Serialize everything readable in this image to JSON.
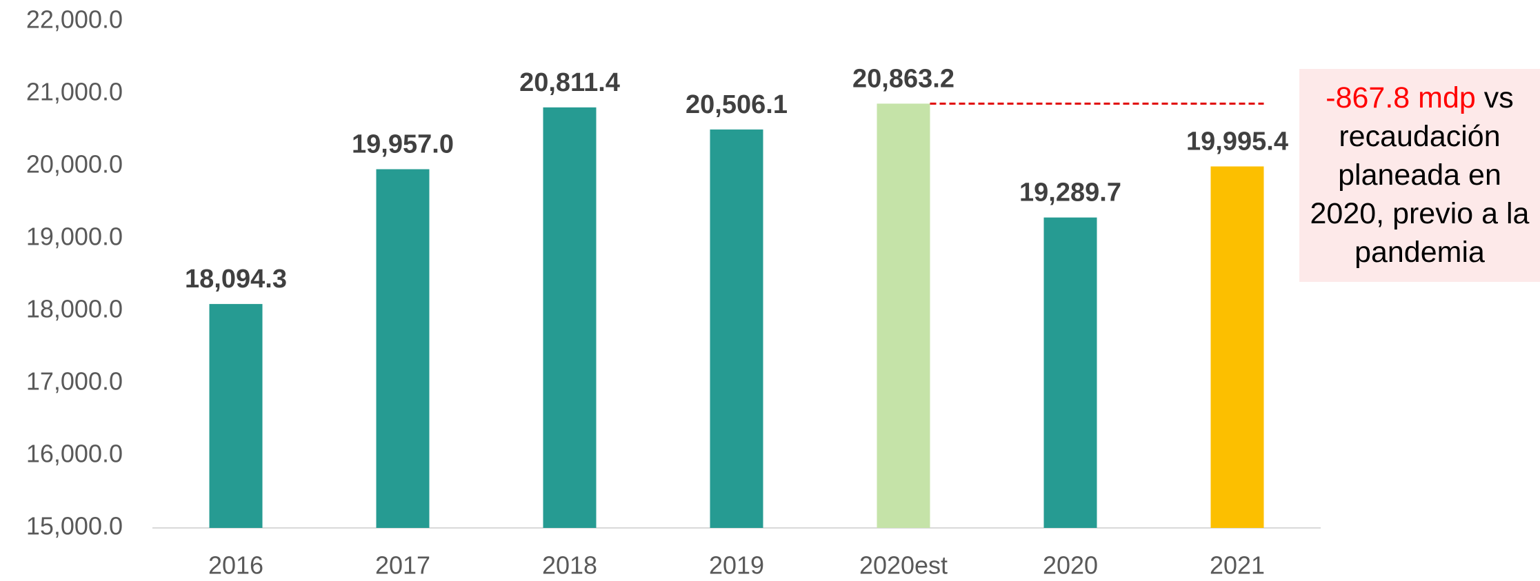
{
  "chart_data": {
    "type": "bar",
    "categories": [
      "2016",
      "2017",
      "2018",
      "2019",
      "2020est",
      "2020",
      "2021"
    ],
    "values": [
      18094.3,
      19957.0,
      20811.4,
      20506.1,
      20863.2,
      19289.7,
      19995.4
    ],
    "value_labels": [
      "18,094.3",
      "19,957.0",
      "20,811.4",
      "20,506.1",
      "20,863.2",
      "19,289.7",
      "19,995.4"
    ],
    "colors": [
      "#269b92",
      "#269b92",
      "#269b92",
      "#269b92",
      "#c5e3a8",
      "#269b92",
      "#fcbf00"
    ],
    "ylim": [
      15000,
      22000
    ],
    "yticks": [
      {
        "value": 15000,
        "label": "15,000.0"
      },
      {
        "value": 16000,
        "label": "16,000.0"
      },
      {
        "value": 17000,
        "label": "17,000.0"
      },
      {
        "value": 18000,
        "label": "18,000.0"
      },
      {
        "value": 19000,
        "label": "19,000.0"
      },
      {
        "value": 20000,
        "label": "20,000.0"
      },
      {
        "value": 21000,
        "label": "21,000.0"
      },
      {
        "value": 22000,
        "label": "22,000.0"
      }
    ],
    "grid": false,
    "annotation": {
      "highlight": "-867.8 mdp",
      "text": "vs recaudación planeada en 2020, previo a la pandemia",
      "highlight_color": "#ff0000"
    }
  }
}
